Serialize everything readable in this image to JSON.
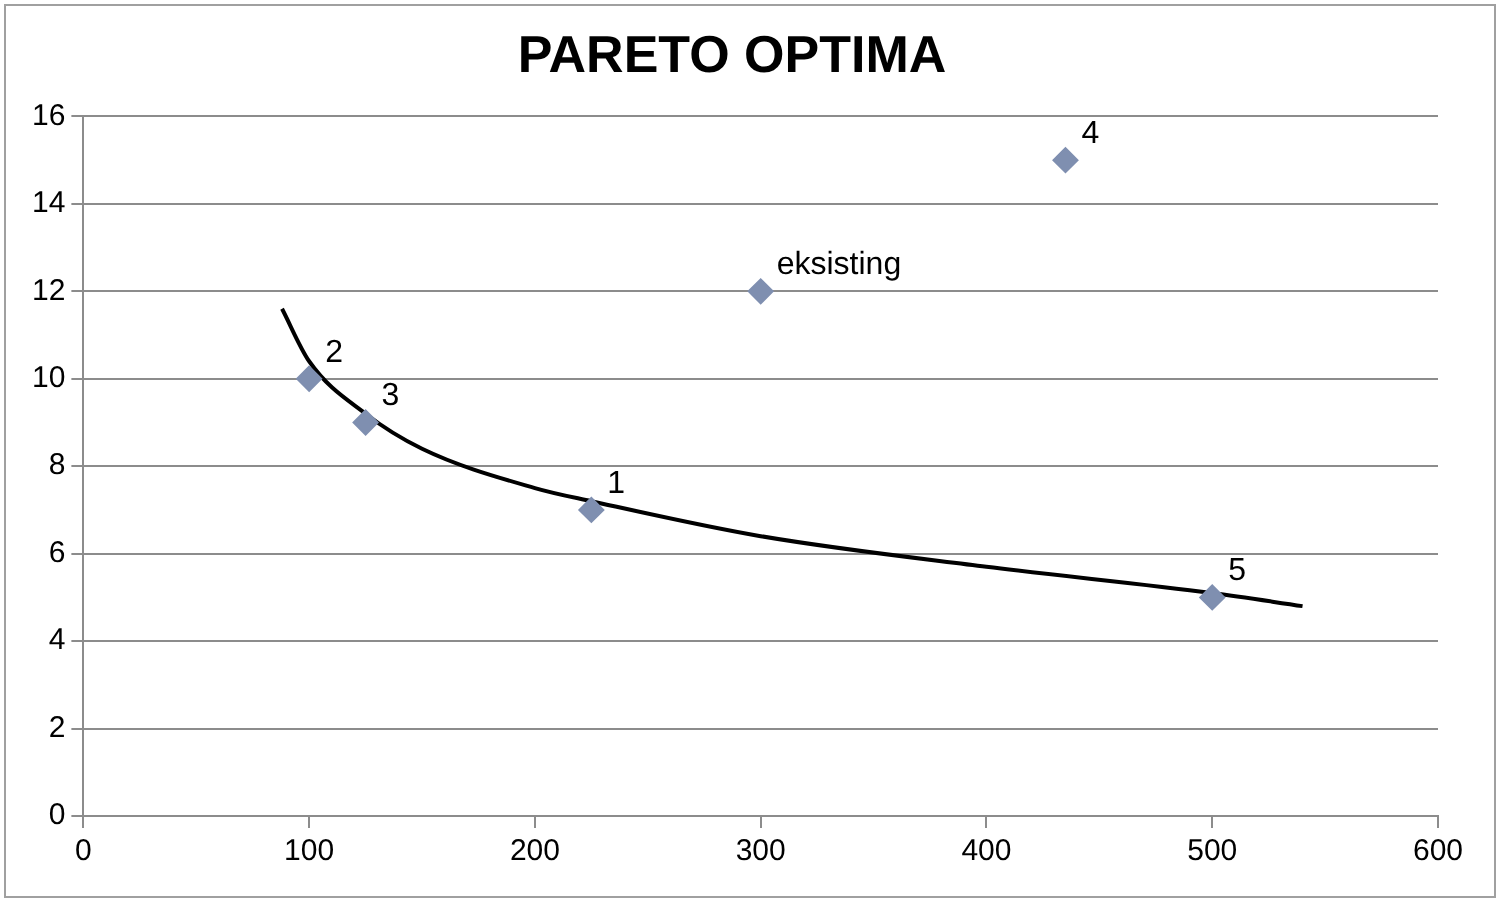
{
  "chart_data": {
    "type": "scatter",
    "title": "PARETO OPTIMA",
    "x": [
      100,
      125,
      225,
      300,
      435,
      500
    ],
    "series": [
      {
        "type": "scatter",
        "color": "#7f8fb0",
        "marker": "diamond",
        "values": [
          10,
          9,
          7,
          12,
          15,
          5
        ]
      },
      {
        "type": "line",
        "color": "#000000",
        "marker": "none",
        "x": [
          88,
          100,
          125,
          150,
          200,
          225,
          300,
          400,
          500,
          540
        ],
        "values": [
          11.6,
          10.4,
          9.2,
          8.4,
          7.5,
          7.2,
          6.4,
          5.7,
          5.1,
          4.8
        ]
      }
    ],
    "annotations": [
      {
        "text": "2",
        "x": 100,
        "y": 10
      },
      {
        "text": "3",
        "x": 125,
        "y": 9
      },
      {
        "text": "1",
        "x": 225,
        "y": 7
      },
      {
        "text": "eksisting",
        "x": 300,
        "y": 12
      },
      {
        "text": "4",
        "x": 435,
        "y": 15
      },
      {
        "text": "5",
        "x": 500,
        "y": 5
      }
    ],
    "xlim": [
      0,
      600
    ],
    "xticks": [
      0,
      100,
      200,
      300,
      400,
      500,
      600
    ],
    "ylim": [
      0,
      16
    ],
    "yticks": [
      0,
      2,
      4,
      6,
      8,
      10,
      12,
      14,
      16
    ],
    "grid": "y",
    "legend": false
  }
}
